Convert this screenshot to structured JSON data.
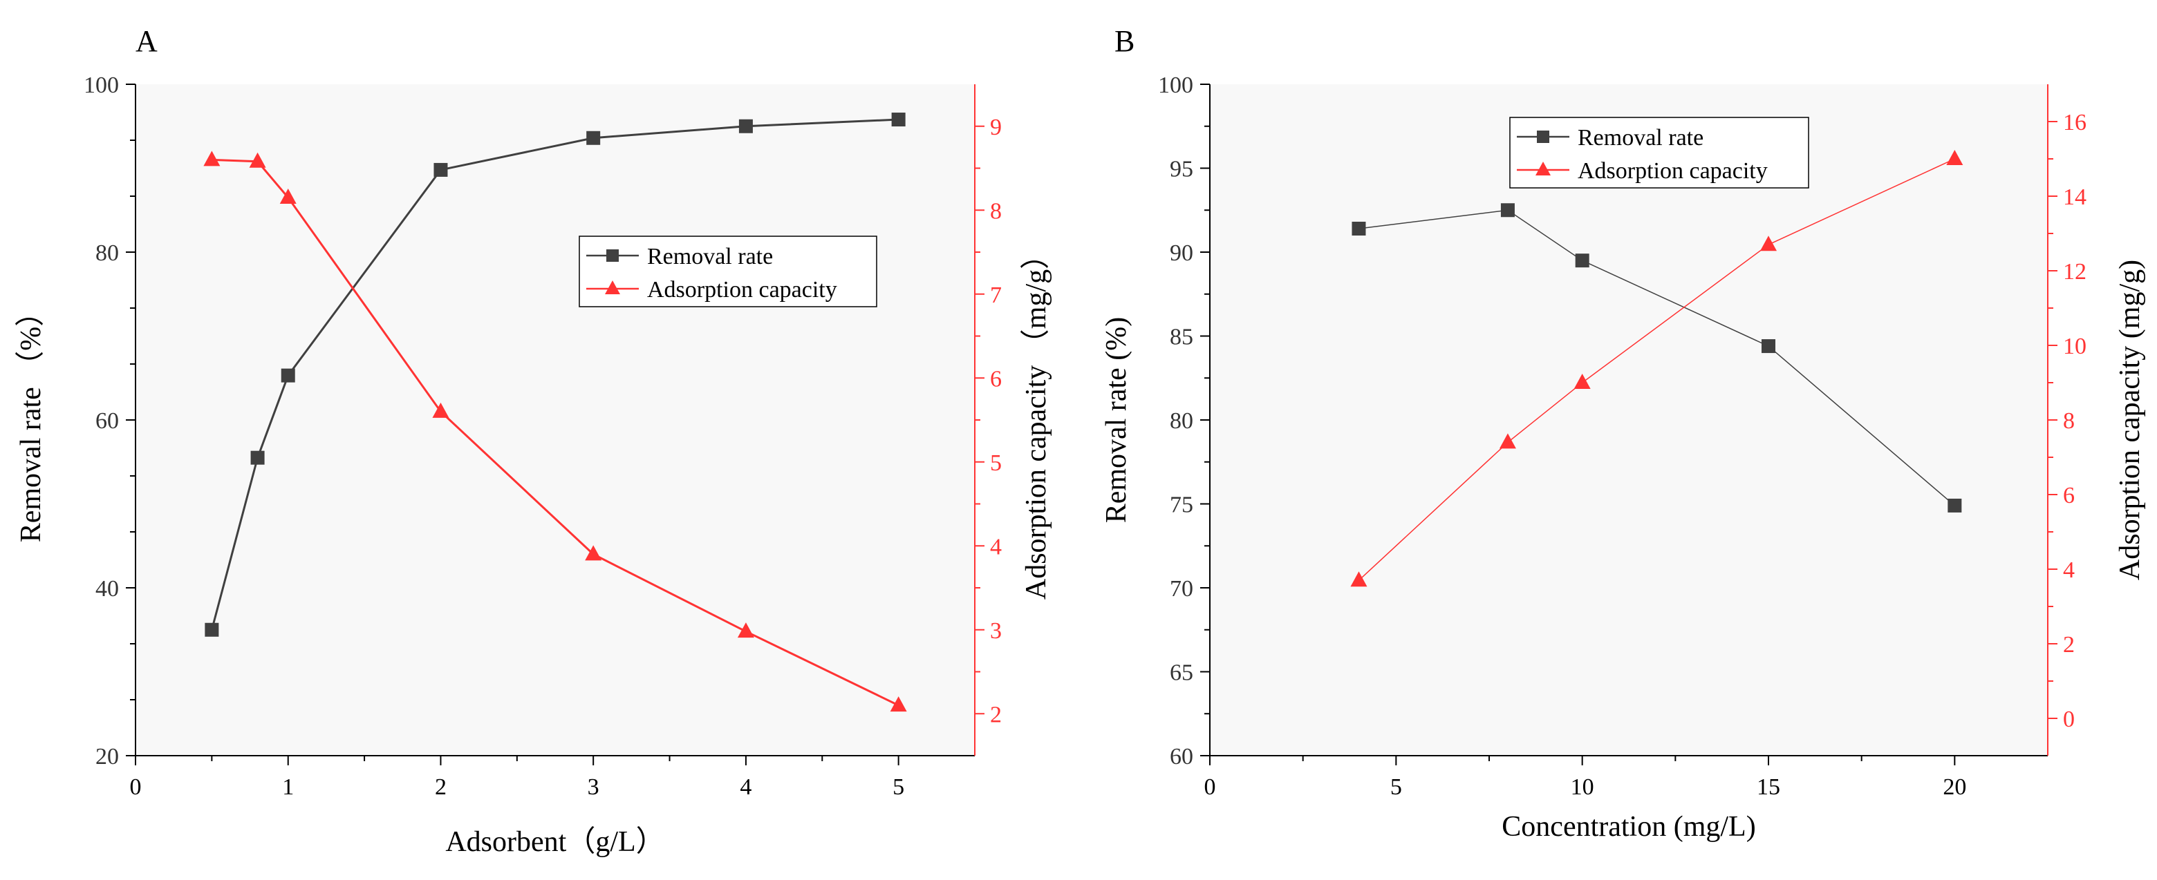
{
  "colors": {
    "axis": "#000000",
    "removal_series": "#404040",
    "adsorption_series": "#ff3333",
    "plot_background": "#f8f8f8"
  },
  "chart_data": [
    {
      "panel_label": "A",
      "type": "line",
      "xlabel": "Adsorbent（g/L）",
      "ylabel_left": "Removal rate （%）",
      "ylabel_right": "Adsorption capacity （mg/g）",
      "xlim": [
        0,
        5.5
      ],
      "ylim_left": [
        20,
        100
      ],
      "ylim_right": [
        1.5,
        9.5
      ],
      "xticks": [
        "0",
        "1",
        "2",
        "3",
        "4",
        "5"
      ],
      "yticks_left": [
        "20",
        "40",
        "60",
        "80",
        "100"
      ],
      "yticks_right": [
        "2",
        "3",
        "4",
        "5",
        "6",
        "7",
        "8",
        "9"
      ],
      "legend_position": "center-right",
      "series": [
        {
          "name": "Removal rate",
          "axis": "left",
          "marker": "square",
          "x": [
            0.5,
            0.8,
            1,
            2,
            3,
            4,
            5
          ],
          "values": [
            35.0,
            55.5,
            65.3,
            89.8,
            93.6,
            95.0,
            95.8
          ]
        },
        {
          "name": "Adsorption capacity",
          "axis": "right",
          "marker": "triangle",
          "x": [
            0.5,
            0.8,
            1,
            2,
            3,
            4,
            5
          ],
          "values": [
            8.6,
            8.58,
            8.15,
            5.6,
            3.9,
            2.98,
            2.1
          ]
        }
      ]
    },
    {
      "panel_label": "B",
      "type": "line",
      "xlabel": "Concentration (mg/L)",
      "ylabel_left": "Removal rate (%)",
      "ylabel_right": "Adsorption capacity (mg/g)",
      "xlim": [
        0,
        22.5
      ],
      "ylim_left": [
        60,
        100
      ],
      "ylim_right": [
        -1,
        17
      ],
      "xticks": [
        "0",
        "5",
        "10",
        "15",
        "20"
      ],
      "yticks_left": [
        "60",
        "65",
        "70",
        "75",
        "80",
        "85",
        "90",
        "95",
        "100"
      ],
      "yticks_right": [
        "0",
        "2",
        "4",
        "6",
        "8",
        "10",
        "12",
        "14",
        "16"
      ],
      "legend_position": "top-center",
      "series": [
        {
          "name": "Removal rate",
          "axis": "left",
          "marker": "square",
          "x": [
            4,
            8,
            10,
            15,
            20
          ],
          "values": [
            91.4,
            92.5,
            89.5,
            84.4,
            74.9
          ]
        },
        {
          "name": "Adsorption capacity",
          "axis": "right",
          "marker": "triangle",
          "x": [
            4,
            8,
            10,
            15,
            20
          ],
          "values": [
            3.7,
            7.4,
            9.0,
            12.7,
            15.0
          ]
        }
      ]
    }
  ]
}
